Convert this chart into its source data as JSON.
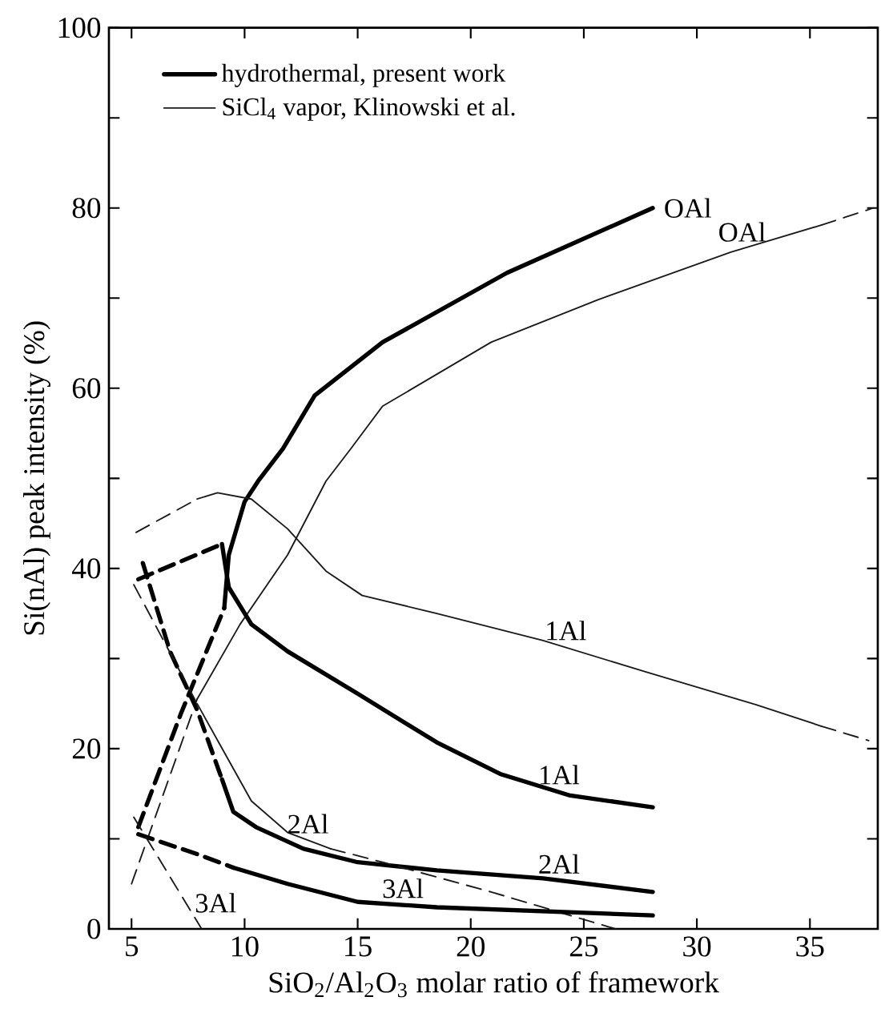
{
  "chart_data": {
    "type": "line",
    "xlabel": "SiO$_{2}$/Al$_{2}$O$_{3}$ molar ratio of framework",
    "ylabel": "Si(nAl) peak intensity (%)",
    "xlim": [
      4,
      38
    ],
    "ylim": [
      0,
      100
    ],
    "xticks": [
      5,
      10,
      15,
      20,
      25,
      30,
      35
    ],
    "yticks": [
      0,
      {
        "value": 10,
        "label": null
      },
      20,
      {
        "value": 30,
        "label": null
      },
      40,
      {
        "value": 50,
        "label": null
      },
      60,
      {
        "value": 70,
        "label": null
      },
      80,
      {
        "value": 90,
        "label": null
      },
      100
    ],
    "legend": "top left",
    "series": [
      {
        "name": "hydrothermal, present work",
        "color": "#000000",
        "line_style": "solid",
        "x": [
          9.1,
          9.3,
          10.0,
          10.6,
          11.7,
          13.1,
          16.1,
          21.6,
          28.05
        ],
        "values": [
          35.6,
          41.5,
          47.4,
          49.7,
          53.3,
          59.2,
          65.1,
          72.8,
          80
        ]
      },
      {
        "name": "SiCl$_{4}$ vapor, Klinowski et al.",
        "color": "#1a1a1a",
        "line_style": "solid",
        "x": [
          7.9,
          9.8,
          11.9,
          13.6,
          14.7,
          16.1,
          20.9,
          25.6,
          31.5,
          35.5
        ],
        "values": [
          25.5,
          33.8,
          41.5,
          49.7,
          53.3,
          58.0,
          65.1,
          69.8,
          75.1,
          78.1
        ]
      },
      {
        "color": "#000000",
        "line_style": "dashed",
        "x": [
          5.3,
          7.2,
          9.1
        ],
        "values": [
          11.3,
          24,
          35.6
        ]
      },
      {
        "color": "#1a1a1a",
        "line_style": "dashed",
        "x": [
          5,
          7.9
        ],
        "values": [
          5,
          25.5
        ]
      },
      {
        "color": "#1a1a1a",
        "line_style": "dashed",
        "x": [
          35.5,
          37.8
        ],
        "values": [
          78.1,
          80
        ]
      },
      {
        "color": "#000000",
        "line_style": "dashed",
        "x": [
          5.3,
          9.0
        ],
        "values": [
          38.8,
          42.7
        ]
      },
      {
        "color": "#000000",
        "line_style": "solid",
        "x": [
          9.0,
          9.3,
          10.3,
          11.9,
          15.0,
          18.5,
          21.3,
          24.4,
          28.05
        ],
        "values": [
          42.7,
          37.9,
          33.8,
          30.8,
          26.1,
          20.7,
          17.2,
          14.8,
          13.5
        ]
      },
      {
        "color": "#1a1a1a",
        "line_style": "dashed",
        "x": [
          5.2,
          7.9
        ],
        "values": [
          44,
          47.7
        ]
      },
      {
        "color": "#1a1a1a",
        "line_style": "solid",
        "x": [
          7.9,
          8.8,
          10.3,
          11.9,
          13.6,
          15.2,
          18.5,
          23.2,
          27.9,
          32.6,
          35.5
        ],
        "values": [
          47.7,
          48.4,
          47.7,
          44.4,
          39.7,
          37.0,
          35.0,
          32.0,
          28.4,
          24.9,
          22.5
        ]
      },
      {
        "color": "#1a1a1a",
        "line_style": "dashed",
        "x": [
          35.5,
          37.6
        ],
        "values": [
          22.5,
          20.9
        ]
      },
      {
        "color": "#000000",
        "line_style": "dashed",
        "x": [
          5.5,
          6.7,
          7.9,
          9.0
        ],
        "values": [
          40.6,
          30.8,
          24.3,
          16.6
        ]
      },
      {
        "color": "#000000",
        "line_style": "solid",
        "x": [
          9.0,
          9.5,
          10.5,
          12.6,
          15.0,
          18.5,
          23.2,
          28.05
        ],
        "values": [
          16.6,
          13.0,
          11.3,
          8.9,
          7.4,
          6.5,
          5.6,
          4.1
        ]
      },
      {
        "color": "#1a1a1a",
        "line_style": "dashed",
        "x": [
          5.1,
          7.9
        ],
        "values": [
          38.2,
          25
        ]
      },
      {
        "color": "#1a1a1a",
        "line_style": "solid",
        "x": [
          7.9,
          9.1,
          10.3,
          11.9,
          13.8
        ],
        "values": [
          25,
          19.6,
          14.2,
          10.7,
          8.9
        ]
      },
      {
        "color": "#1a1a1a",
        "line_style": "dashed",
        "x": [
          13.8,
          16.1,
          20.9,
          26.4
        ],
        "values": [
          8.9,
          7.4,
          4.1,
          0
        ]
      },
      {
        "color": "#000000",
        "line_style": "dashed",
        "x": [
          5.3,
          7.9,
          9.5
        ],
        "values": [
          10.5,
          8.3,
          6.8
        ]
      },
      {
        "color": "#000000",
        "line_style": "solid",
        "x": [
          9.5,
          11.9,
          15.0,
          18.5,
          28.05
        ],
        "values": [
          6.8,
          5.0,
          3.0,
          2.4,
          1.5
        ]
      },
      {
        "color": "#1a1a1a",
        "line_style": "dashed",
        "x": [
          5.1,
          8.1
        ],
        "values": [
          12.4,
          0
        ]
      }
    ],
    "annotations": [
      {
        "text": "OAl",
        "x": 28.05,
        "y": 80
      },
      {
        "text": "OAl",
        "x": 32,
        "y": 75.5
      },
      {
        "text": "1Al",
        "x": 24.2,
        "y": 31.3
      },
      {
        "text": "1Al",
        "x": 23.9,
        "y": 15.3
      },
      {
        "text": "2Al",
        "x": 12.8,
        "y": 9.85
      },
      {
        "text": "2Al",
        "x": 23.9,
        "y": 5.4
      },
      {
        "text": "3Al",
        "x": 7.4,
        "y": 2.89
      },
      {
        "text": "3Al",
        "x": 17,
        "y": 2.66
      }
    ]
  }
}
